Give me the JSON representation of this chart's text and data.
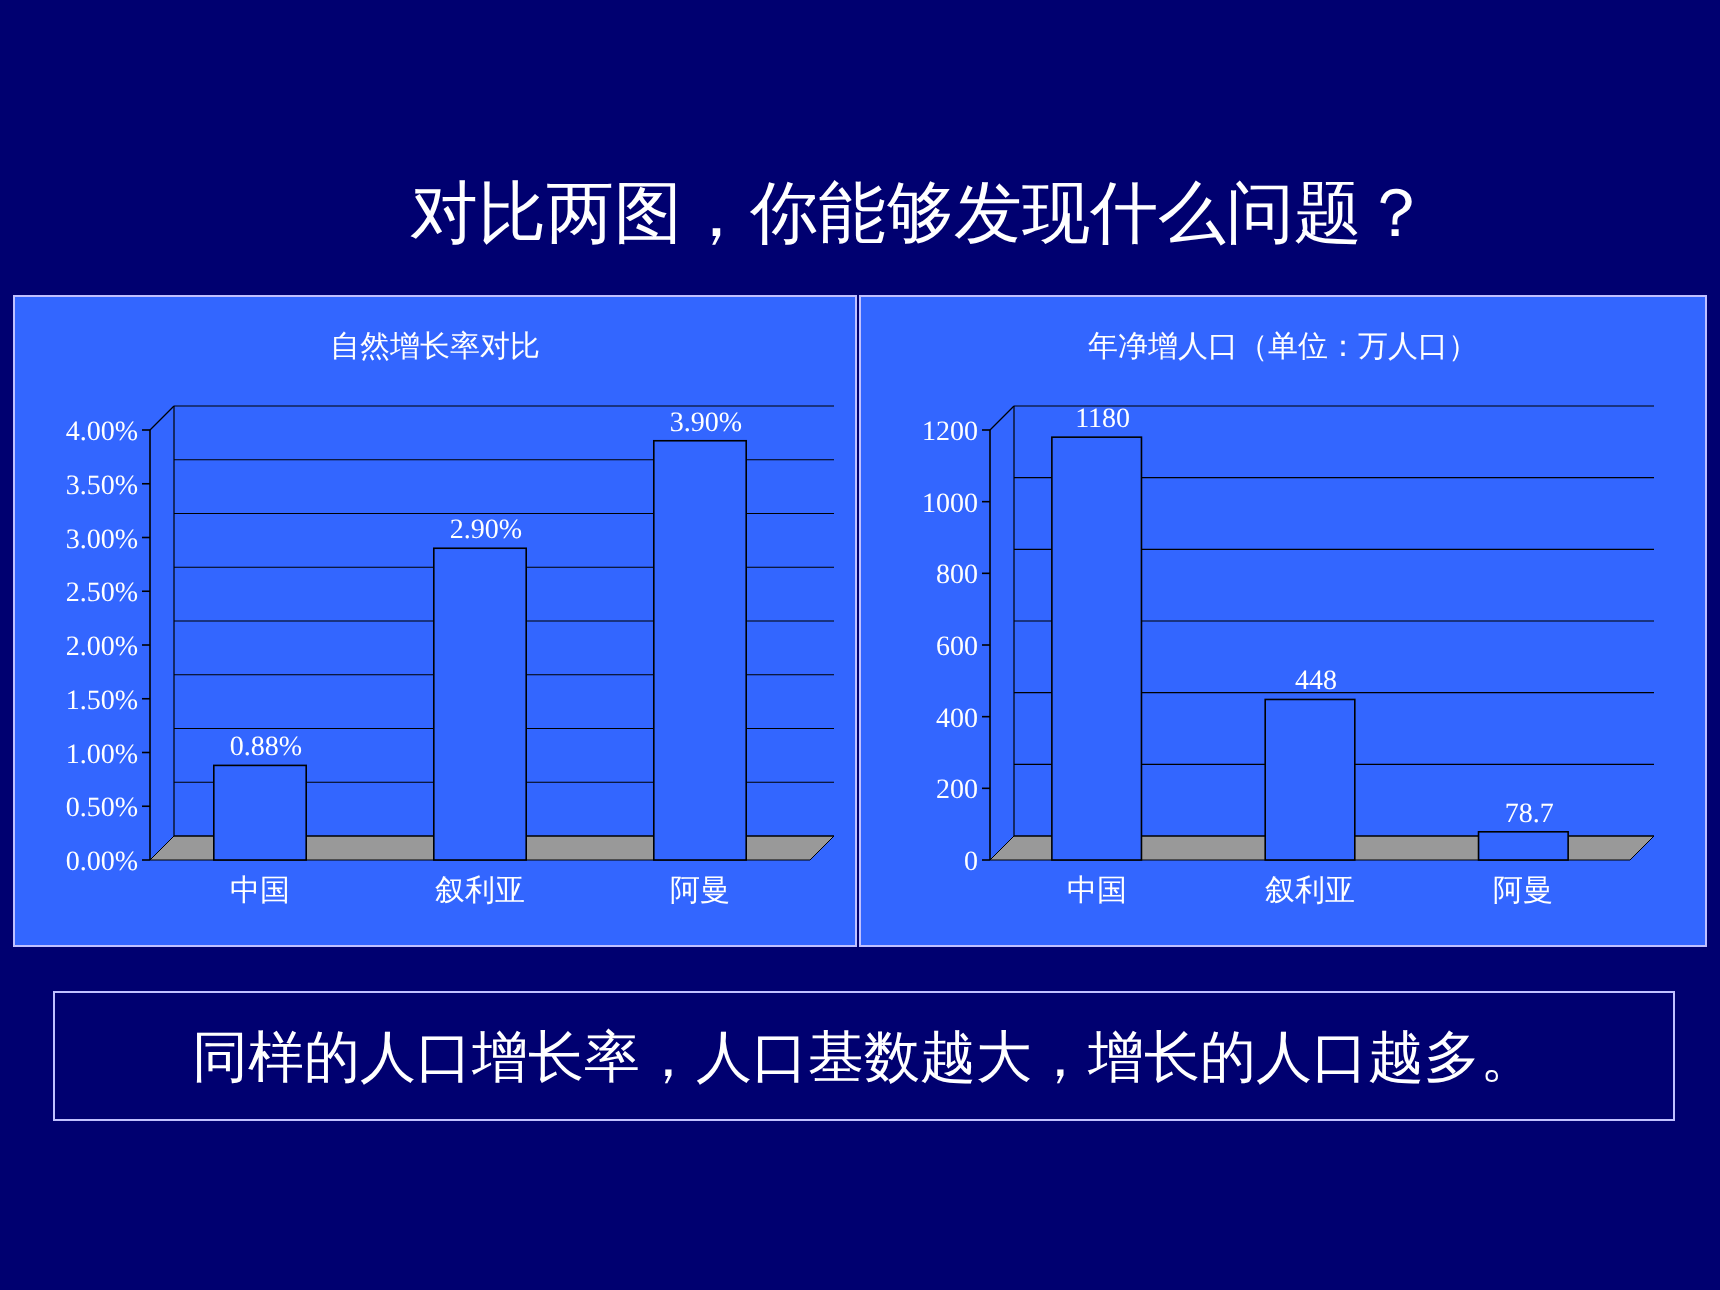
{
  "chart_data": [
    {
      "type": "other",
      "title": "对比两图，你能够发现什么问题？",
      "annotations": [
        "同样的人口增长率，人口基数越大，增长的人口越多。"
      ]
    },
    {
      "type": "bar",
      "title": "自然增长率对比",
      "categories": [
        "中国",
        "叙利亚",
        "阿曼"
      ],
      "values": [
        0.88,
        2.9,
        3.9
      ],
      "value_labels": [
        "0.88%",
        "2.90%",
        "3.90%"
      ],
      "color": "#3366ff",
      "ylim": [
        0,
        4
      ],
      "yticks": [
        {
          "value": 0,
          "label": "0.00%"
        },
        {
          "value": 0.5,
          "label": "0.50%"
        },
        {
          "value": 1,
          "label": "1.00%"
        },
        {
          "value": 1.5,
          "label": "1.50%"
        },
        {
          "value": 2,
          "label": "2.00%"
        },
        {
          "value": 2.5,
          "label": "2.50%"
        },
        {
          "value": 3,
          "label": "3.00%"
        },
        {
          "value": 3.5,
          "label": "3.50%"
        },
        {
          "value": 4,
          "label": "4.00%"
        }
      ],
      "grid": "y"
    },
    {
      "type": "bar",
      "title": "年净增人口（单位：万人口）",
      "categories": [
        "中国",
        "叙利亚",
        "阿曼"
      ],
      "values": [
        1180,
        448,
        78.7
      ],
      "data_labels": true,
      "color": "#3366ff",
      "ylim": [
        0,
        1200
      ],
      "yticks": [
        0,
        200,
        400,
        600,
        800,
        1000,
        1200
      ],
      "grid": "y"
    }
  ]
}
